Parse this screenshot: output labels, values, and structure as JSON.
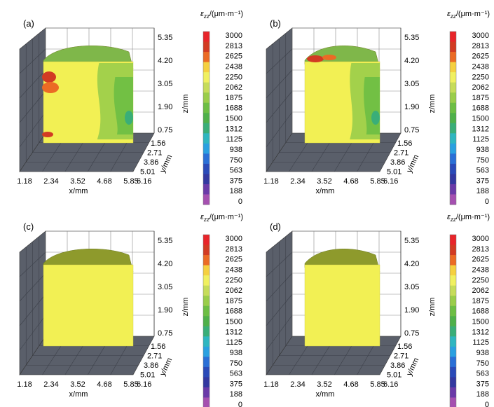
{
  "colorbar": {
    "title_symbol": "ε",
    "title_subscript": "zz",
    "title_unit": "/(μm·m⁻¹)",
    "labels": [
      "3000",
      "2813",
      "2625",
      "2438",
      "2250",
      "2062",
      "1875",
      "1688",
      "1500",
      "1312",
      "1125",
      "938",
      "750",
      "563",
      "375",
      "188",
      "0"
    ],
    "colors": [
      "#e8252a",
      "#d23b23",
      "#eb6b25",
      "#f5d040",
      "#f0f060",
      "#c6dc5a",
      "#9acd4a",
      "#6dbe44",
      "#4fb04a",
      "#3aae78",
      "#2fb6c0",
      "#2aa0e0",
      "#2a6fd6",
      "#2a4ab8",
      "#3338a0",
      "#6a3aa8",
      "#a550b0"
    ]
  },
  "axes": {
    "x_ticks": [
      "1.18",
      "2.34",
      "3.52",
      "4.68",
      "5.85"
    ],
    "y_ticks": [
      "1.56",
      "2.71",
      "3.86",
      "5.01",
      "6.16"
    ],
    "z_ticks": [
      "0.75",
      "1.90",
      "3.05",
      "4.20",
      "5.35"
    ],
    "x_label": "x/mm",
    "y_label": "y/mm",
    "z_label": "z/mm"
  },
  "chart_data": [
    {
      "type": "3d-contour",
      "panel_label": "(a)",
      "body_width": "wide",
      "surface": "measured strain field"
    },
    {
      "type": "3d-contour",
      "panel_label": "(b)",
      "body_width": "narrow",
      "surface": "measured strain field"
    },
    {
      "type": "3d-contour",
      "panel_label": "(c)",
      "body_width": "wide",
      "surface": "uniform"
    },
    {
      "type": "3d-contour",
      "panel_label": "(d)",
      "body_width": "narrow",
      "surface": "uniform"
    }
  ]
}
